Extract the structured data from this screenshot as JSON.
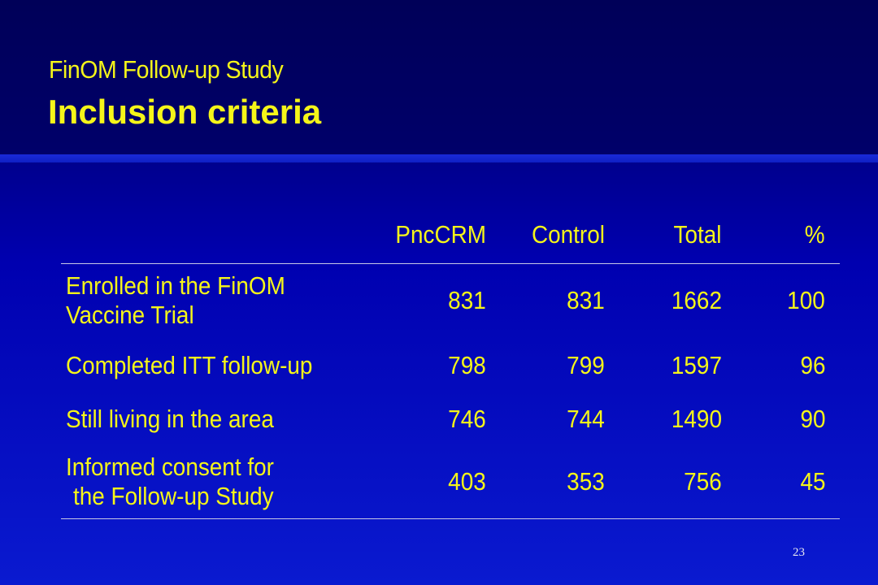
{
  "slide": {
    "subtitle": "FinOM Follow-up Study",
    "title": "Inclusion criteria",
    "page_number": "23"
  },
  "table": {
    "headers": [
      "",
      "PncCRM",
      "Control",
      "Total",
      "%"
    ],
    "rows": [
      {
        "label_lines": [
          "Enrolled in the FinOM",
          "Vaccine Trial"
        ],
        "pnccrm": "831",
        "control": "831",
        "total": "1662",
        "percent": "100"
      },
      {
        "label_lines": [
          "Completed ITT follow-up"
        ],
        "pnccrm": "798",
        "control": "799",
        "total": "1597",
        "percent": "96"
      },
      {
        "label_lines": [
          "Still living in the area"
        ],
        "pnccrm": "746",
        "control": "744",
        "total": "1490",
        "percent": "90"
      },
      {
        "label_lines": [
          "Informed consent for",
          "the Follow-up Study"
        ],
        "pnccrm": "403",
        "control": "353",
        "total": "756",
        "percent": "45"
      }
    ]
  },
  "colors": {
    "background": "#0a0a8c",
    "header_background": "#000060",
    "text": "#f5f519",
    "rule": "#c9c9e6",
    "page_number": "#e8e8f0"
  }
}
